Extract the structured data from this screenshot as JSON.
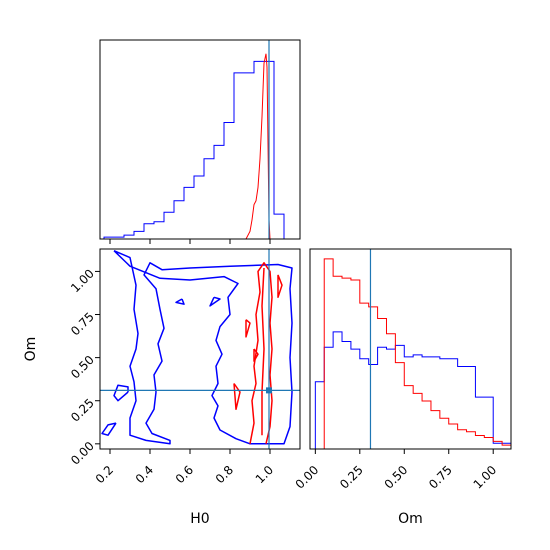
{
  "chart_data": {
    "type": "corner",
    "parameters": [
      "H0",
      "Om"
    ],
    "truth": {
      "H0": 0.995,
      "Om": 0.31
    },
    "colors": {
      "series_a": "#0000ff",
      "series_b": "#ff0000",
      "truth": "#1f77b4",
      "frame": "#000000"
    },
    "grid": false,
    "panels": [
      {
        "kind": "histogram",
        "parameter": "H0",
        "xlim": [
          0.15,
          1.15
        ],
        "xticks": [
          0.2,
          0.4,
          0.6,
          0.8,
          1.0
        ],
        "show_tick_labels": false,
        "bin_edges": [
          0.17,
          0.22,
          0.27,
          0.32,
          0.37,
          0.42,
          0.47,
          0.52,
          0.57,
          0.62,
          0.67,
          0.72,
          0.77,
          0.82,
          0.87,
          0.92,
          0.97,
          1.02,
          1.07,
          1.12
        ],
        "series": [
          {
            "color_key": "series_a",
            "values": [
              0.01,
              0.01,
              0.02,
              0.04,
              0.08,
              0.09,
              0.14,
              0.2,
              0.27,
              0.33,
              0.42,
              0.49,
              0.61,
              0.87,
              0.87,
              0.93,
              0.93,
              0.13,
              0.0
            ]
          },
          {
            "color_key": "series_b",
            "type": "fine",
            "points": [
              [
                0.88,
                0.0
              ],
              [
                0.9,
                0.04
              ],
              [
                0.91,
                0.1
              ],
              [
                0.92,
                0.18
              ],
              [
                0.93,
                0.2
              ],
              [
                0.94,
                0.27
              ],
              [
                0.95,
                0.42
              ],
              [
                0.96,
                0.64
              ],
              [
                0.97,
                0.92
              ],
              [
                0.98,
                0.97
              ],
              [
                0.985,
                0.9
              ],
              [
                0.99,
                0.5
              ],
              [
                0.995,
                0.1
              ],
              [
                1.0,
                0.0
              ]
            ]
          }
        ]
      },
      {
        "kind": "histogram",
        "parameter": "Om",
        "xlim": [
          -0.03,
          1.1
        ],
        "xticks": [
          0.0,
          0.25,
          0.5,
          0.75,
          1.0
        ],
        "tick_labels": [
          "0.00",
          "0.25",
          "0.50",
          "0.75",
          "1.00"
        ],
        "xlabel": "Om",
        "bin_edges": [
          0.0,
          0.05,
          0.1,
          0.15,
          0.2,
          0.25,
          0.3,
          0.35,
          0.4,
          0.45,
          0.5,
          0.55,
          0.6,
          0.65,
          0.7,
          0.75,
          0.8,
          0.85,
          0.9,
          0.95,
          1.0,
          1.05,
          1.1
        ],
        "series": [
          {
            "color_key": "series_a",
            "values": [
              0.35,
              0.53,
              0.61,
              0.56,
              0.52,
              0.47,
              0.44,
              0.53,
              0.52,
              0.54,
              0.48,
              0.49,
              0.48,
              0.48,
              0.47,
              0.47,
              0.43,
              0.43,
              0.27,
              0.27,
              0.03,
              0.03
            ]
          },
          {
            "color_key": "series_b",
            "values": [
              0.0,
              0.99,
              0.9,
              0.89,
              0.88,
              0.76,
              0.74,
              0.68,
              0.6,
              0.45,
              0.33,
              0.29,
              0.25,
              0.2,
              0.16,
              0.13,
              0.1,
              0.09,
              0.07,
              0.06,
              0.04,
              0.02
            ]
          }
        ]
      },
      {
        "kind": "contour",
        "xparam": "H0",
        "yparam": "Om",
        "xlim": [
          0.15,
          1.15
        ],
        "ylim": [
          -0.03,
          1.13
        ],
        "xticks": [
          0.2,
          0.4,
          0.6,
          0.8,
          1.0
        ],
        "xtick_labels": [
          "0.2",
          "0.4",
          "0.6",
          "0.8",
          "1.0"
        ],
        "yticks": [
          0.0,
          0.25,
          0.5,
          0.75,
          1.0
        ],
        "ytick_labels": [
          "0.00",
          "0.25",
          "0.50",
          "0.75",
          "1.00"
        ],
        "xlabel": "H0",
        "ylabel": "Om",
        "contours": [
          {
            "color_key": "series_a",
            "points": [
              [
                0.22,
                1.12
              ],
              [
                0.3,
                1.08
              ],
              [
                0.33,
                0.92
              ],
              [
                0.32,
                0.78
              ],
              [
                0.34,
                0.64
              ],
              [
                0.33,
                0.55
              ],
              [
                0.3,
                0.45
              ],
              [
                0.32,
                0.36
              ],
              [
                0.33,
                0.25
              ],
              [
                0.3,
                0.15
              ],
              [
                0.3,
                0.05
              ],
              [
                0.38,
                0.02
              ],
              [
                0.5,
                0.0
              ],
              [
                0.5,
                0.02
              ],
              [
                0.41,
                0.06
              ],
              [
                0.38,
                0.12
              ],
              [
                0.42,
                0.2
              ],
              [
                0.43,
                0.3
              ],
              [
                0.42,
                0.4
              ],
              [
                0.46,
                0.48
              ],
              [
                0.44,
                0.58
              ],
              [
                0.47,
                0.67
              ],
              [
                0.45,
                0.78
              ],
              [
                0.43,
                0.9
              ],
              [
                0.37,
                0.98
              ],
              [
                0.4,
                1.05
              ],
              [
                0.46,
                1.01
              ],
              [
                0.6,
                1.02
              ],
              [
                0.8,
                1.03
              ],
              [
                1.04,
                1.04
              ],
              [
                1.11,
                1.02
              ],
              [
                1.1,
                0.9
              ],
              [
                1.11,
                0.7
              ],
              [
                1.1,
                0.5
              ],
              [
                1.11,
                0.3
              ],
              [
                1.1,
                0.1
              ],
              [
                1.07,
                0.0
              ],
              [
                0.9,
                0.0
              ],
              [
                0.83,
                0.03
              ],
              [
                0.75,
                0.08
              ],
              [
                0.72,
                0.15
              ],
              [
                0.74,
                0.22
              ],
              [
                0.71,
                0.28
              ],
              [
                0.74,
                0.35
              ],
              [
                0.73,
                0.45
              ],
              [
                0.76,
                0.52
              ],
              [
                0.73,
                0.6
              ],
              [
                0.75,
                0.68
              ],
              [
                0.8,
                0.75
              ],
              [
                0.79,
                0.85
              ],
              [
                0.84,
                0.93
              ],
              [
                0.77,
                0.97
              ],
              [
                0.6,
                0.95
              ],
              [
                0.45,
                0.96
              ],
              [
                0.3,
                1.03
              ],
              [
                0.22,
                1.12
              ]
            ]
          },
          {
            "color_key": "series_a",
            "points": [
              [
                0.29,
                0.3
              ],
              [
                0.24,
                0.25
              ],
              [
                0.22,
                0.28
              ],
              [
                0.24,
                0.34
              ],
              [
                0.29,
                0.33
              ],
              [
                0.29,
                0.3
              ]
            ]
          },
          {
            "color_key": "series_a",
            "points": [
              [
                0.23,
                0.12
              ],
              [
                0.19,
                0.05
              ],
              [
                0.16,
                0.06
              ],
              [
                0.19,
                0.11
              ],
              [
                0.23,
                0.12
              ]
            ]
          },
          {
            "color_key": "series_a",
            "points": [
              [
                0.72,
                0.85
              ],
              [
                0.7,
                0.8
              ],
              [
                0.75,
                0.84
              ],
              [
                0.72,
                0.85
              ]
            ]
          },
          {
            "color_key": "series_a",
            "points": [
              [
                0.56,
                0.84
              ],
              [
                0.53,
                0.82
              ],
              [
                0.57,
                0.81
              ],
              [
                0.56,
                0.84
              ]
            ]
          },
          {
            "color_key": "series_b",
            "points": [
              [
                0.9,
                0.0
              ],
              [
                0.92,
                0.12
              ],
              [
                0.91,
                0.25
              ],
              [
                0.93,
                0.35
              ],
              [
                0.92,
                0.45
              ],
              [
                0.94,
                0.6
              ],
              [
                0.93,
                0.75
              ],
              [
                0.95,
                0.88
              ],
              [
                0.94,
                1.0
              ],
              [
                0.97,
                1.05
              ],
              [
                1.0,
                1.0
              ],
              [
                1.01,
                0.85
              ],
              [
                1.0,
                0.7
              ],
              [
                1.01,
                0.55
              ],
              [
                1.0,
                0.4
              ],
              [
                1.01,
                0.25
              ],
              [
                1.0,
                0.1
              ],
              [
                0.98,
                0.0
              ]
            ]
          },
          {
            "color_key": "series_b",
            "points": [
              [
                0.96,
                0.05
              ],
              [
                0.96,
                0.3
              ],
              [
                0.97,
                0.55
              ],
              [
                0.96,
                0.8
              ],
              [
                0.97,
                1.02
              ]
            ]
          },
          {
            "color_key": "series_b",
            "points": [
              [
                0.88,
                0.72
              ],
              [
                0.88,
                0.62
              ],
              [
                0.9,
                0.7
              ],
              [
                0.88,
                0.72
              ]
            ]
          },
          {
            "color_key": "series_b",
            "points": [
              [
                0.82,
                0.35
              ],
              [
                0.83,
                0.2
              ],
              [
                0.85,
                0.3
              ],
              [
                0.82,
                0.35
              ]
            ]
          },
          {
            "color_key": "series_b",
            "points": [
              [
                0.92,
                0.55
              ],
              [
                0.92,
                0.48
              ],
              [
                0.94,
                0.52
              ],
              [
                0.92,
                0.55
              ]
            ]
          },
          {
            "color_key": "series_b",
            "points": [
              [
                1.04,
                0.98
              ],
              [
                1.04,
                0.85
              ],
              [
                1.06,
                0.92
              ],
              [
                1.04,
                0.98
              ]
            ]
          }
        ],
        "point_markers": [
          {
            "x": 0.995,
            "y": 0.31,
            "color_key": "truth"
          }
        ]
      }
    ]
  }
}
